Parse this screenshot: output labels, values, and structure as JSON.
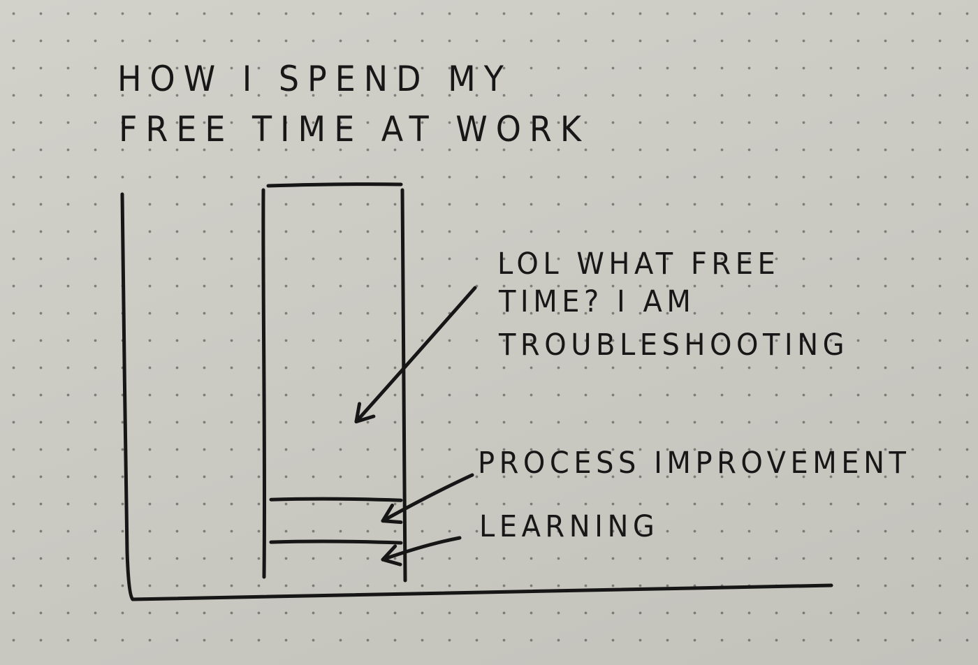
{
  "chart_data": {
    "type": "bar",
    "title": "HOW I SPEND MY FREE TIME AT WORK",
    "title_lines": [
      "HOW I SPEND MY",
      "FREE TIME AT WORK"
    ],
    "xlabel": "",
    "ylabel": "",
    "stacked": true,
    "grid": false,
    "segments": [
      {
        "name": "LEARNING",
        "value": 0.09,
        "label_lines": [
          "LEARNING"
        ]
      },
      {
        "name": "PROCESS IMPROVEMENT",
        "value": 0.11,
        "label_lines": [
          "PROCESS IMPROVEMENT"
        ]
      },
      {
        "name": "TROUBLESHOOTING",
        "value": 0.8,
        "label_lines": [
          "LOL WHAT FREE",
          "TIME? I AM",
          "TROUBLESHOOTING"
        ]
      }
    ]
  },
  "colors": {
    "ink": "#161616",
    "paper": "#cbcac3"
  }
}
